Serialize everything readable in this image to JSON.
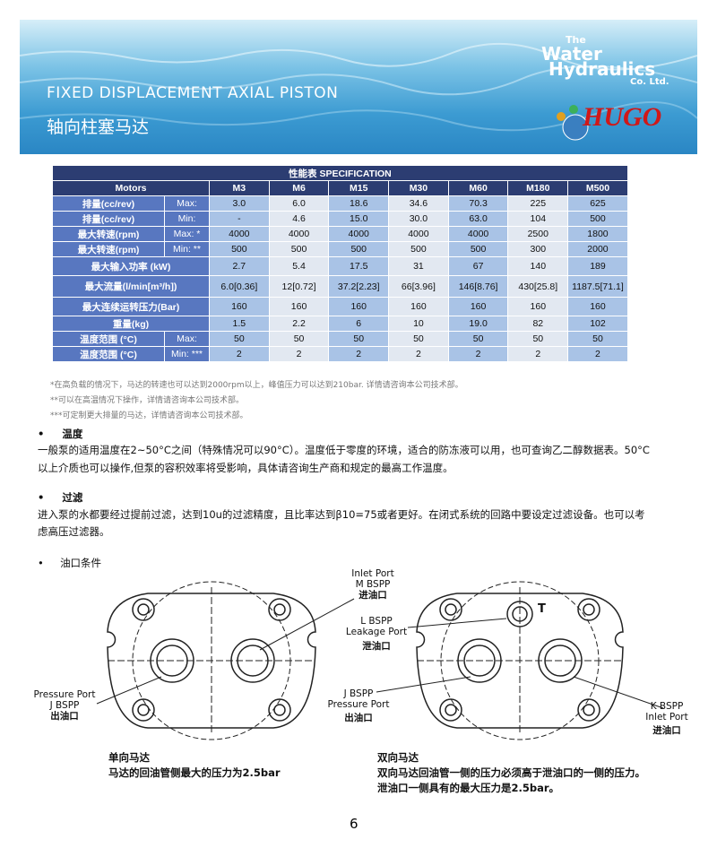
{
  "header": {
    "title": "FIXED DISPLACEMENT AXIAL PISTON",
    "subtitle": "轴向柱塞马达",
    "logo": {
      "the": "The",
      "water": "Water",
      "hydraulics": "Hydraulics",
      "company": "Co. Ltd.",
      "brand": "HUGO"
    }
  },
  "table": {
    "caption": "性能表 SPECIFICATION",
    "row_header": "Motors",
    "columns": [
      "M3",
      "M6",
      "M15",
      "M30",
      "M60",
      "M180",
      "M500"
    ],
    "rows": [
      {
        "label": "排量(cc/rev)",
        "qualifier": "Max:",
        "cells": [
          "3.0",
          "6.0",
          "18.6",
          "34.6",
          "70.3",
          "225",
          "625"
        ]
      },
      {
        "label": "排量(cc/rev)",
        "qualifier": "Min:",
        "cells": [
          "-",
          "4.6",
          "15.0",
          "30.0",
          "63.0",
          "104",
          "500"
        ]
      },
      {
        "label": "最大转速(rpm)",
        "qualifier": "Max: *",
        "cells": [
          "4000",
          "4000",
          "4000",
          "4000",
          "4000",
          "2500",
          "1800"
        ]
      },
      {
        "label": "最大转速(rpm)",
        "qualifier": "Min: **",
        "cells": [
          "500",
          "500",
          "500",
          "500",
          "500",
          "300",
          "2000"
        ]
      },
      {
        "label": "最大输入功率 (kW)",
        "cells": [
          "2.7",
          "5.4",
          "17.5",
          "31",
          "67",
          "140",
          "189"
        ]
      },
      {
        "label": "最大流量(l/min[m³/h])",
        "cells": [
          "6.0[0.36]",
          "12[0.72]",
          "37.2[2.23]",
          "66[3.96]",
          "146[8.76]",
          "430[25.8]",
          "1187.5[71.1]"
        ]
      },
      {
        "label": "最大连续运转压力(Bar)",
        "cells": [
          "160",
          "160",
          "160",
          "160",
          "160",
          "160",
          "160"
        ]
      },
      {
        "label": "重量(kg)",
        "cells": [
          "1.5",
          "2.2",
          "6",
          "10",
          "19.0",
          "82",
          "102"
        ]
      },
      {
        "label": "温度范围 (°C)",
        "qualifier": "Max:",
        "cells": [
          "50",
          "50",
          "50",
          "50",
          "50",
          "50",
          "50"
        ]
      },
      {
        "label": "温度范围 (°C)",
        "qualifier": "Min: ***",
        "cells": [
          "2",
          "2",
          "2",
          "2",
          "2",
          "2",
          "2"
        ]
      }
    ]
  },
  "footnotes": [
    "*在高负载的情况下，马达的转速也可以达到2000rpm以上，峰值压力可以达到210bar. 详情请咨询本公司技术部。",
    "**可以在高温情况下操作，详情请咨询本公司技术部。",
    "***可定制更大排量的马达，详情请咨询本公司技术部。"
  ],
  "sections": [
    {
      "title": "温度",
      "body": [
        "一般泵的适用温度在2~50°C之间（特殊情况可以90°C）。温度低于零度的环境，适合的防冻液可以用，也可查询乙二醇数据表。50°C",
        "以上介质也可以操作,但泵的容积效率将受影响，具体请咨询生产商和规定的最高工作温度。"
      ]
    },
    {
      "title": "过滤",
      "body": [
        "进入泵的水都要经过提前过滤，达到10u的过滤精度，且比率达到β10=75或者更好。在闭式系统的回路中要设定过滤设备。也可以考",
        "虑高压过滤器。"
      ]
    },
    {
      "title": "油口条件"
    }
  ],
  "diagrams": [
    {
      "labels": [
        [
          "Inlet Port",
          "M BSPP",
          "进油口"
        ],
        [
          "Pressure Port",
          "J BSPP",
          "出油口"
        ]
      ],
      "caption": "单向马达",
      "notes": [
        "马达的回油管侧最大的压力为2.5bar"
      ]
    },
    {
      "labels": [
        [
          "L BSPP",
          "Leakage Port",
          "泄油口"
        ],
        [
          "T"
        ],
        [
          "J BSPP",
          "Pressure Port",
          "出油口"
        ],
        [
          "K BSPP",
          "Inlet Port",
          "进油口"
        ]
      ],
      "caption": "双向马达",
      "notes": [
        "双向马达回油管一侧的压力必须高于泄油口的一侧的压力。",
        "泄油口一侧具有的最大压力是2.5bar。"
      ]
    }
  ],
  "page_number": "6"
}
